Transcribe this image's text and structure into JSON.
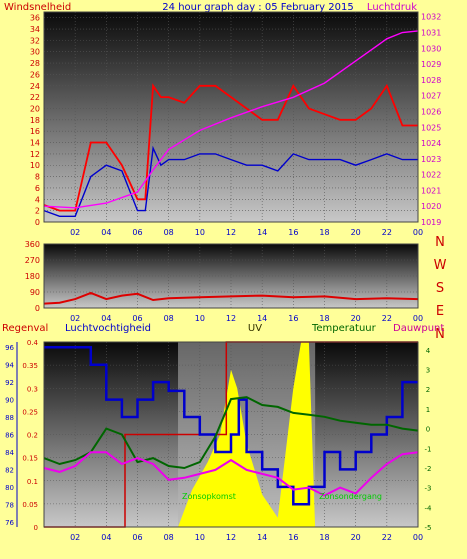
{
  "chart_data": [
    {
      "type": "line",
      "title": "24 hour graph day : 05 February 2015",
      "left_label": "Windsnelheid",
      "right_label": "Luchtdruk",
      "x_ticks": [
        "02",
        "04",
        "06",
        "08",
        "10",
        "12",
        "14",
        "16",
        "18",
        "20",
        "22",
        "00"
      ],
      "y_left_ticks": [
        0,
        2,
        4,
        6,
        8,
        10,
        12,
        14,
        16,
        18,
        20,
        22,
        24,
        26,
        28,
        30,
        32,
        34,
        36
      ],
      "y_left_range": [
        0,
        37
      ],
      "y_right_ticks": [
        1019,
        1020,
        1021,
        1022,
        1023,
        1024,
        1025,
        1026,
        1027,
        1028,
        1029,
        1030,
        1031,
        1032
      ],
      "y_right_range": [
        1019,
        1032.3
      ],
      "grid": true,
      "series": [
        {
          "key": "gust",
          "color": "#ff0000",
          "axis": "left",
          "x": [
            0,
            1,
            2,
            3,
            4,
            5,
            6,
            6.5,
            7,
            7.5,
            8,
            9,
            10,
            11,
            12,
            13,
            14,
            15,
            16,
            17,
            18,
            19,
            20,
            21,
            22,
            23,
            24
          ],
          "y": [
            3,
            2,
            2,
            14,
            14,
            10,
            4,
            4,
            24,
            22,
            22,
            21,
            24,
            24,
            22,
            20,
            18,
            18,
            24,
            20,
            19,
            18,
            18,
            20,
            24,
            17,
            17
          ]
        },
        {
          "key": "wind",
          "color": "#0000cc",
          "axis": "left",
          "x": [
            0,
            1,
            2,
            3,
            4,
            5,
            6,
            6.5,
            7,
            7.5,
            8,
            9,
            10,
            11,
            12,
            13,
            14,
            15,
            16,
            17,
            18,
            19,
            20,
            21,
            22,
            23,
            24
          ],
          "y": [
            2,
            1,
            1,
            8,
            10,
            9,
            2,
            2,
            13,
            10,
            11,
            11,
            12,
            12,
            11,
            10,
            10,
            9,
            12,
            11,
            11,
            11,
            10,
            11,
            12,
            11,
            11
          ]
        },
        {
          "key": "pressure",
          "color": "#ff00ff",
          "axis": "right",
          "x": [
            0,
            2,
            4,
            6,
            7,
            8,
            10,
            12,
            14,
            16,
            18,
            20,
            22,
            23,
            24
          ],
          "y": [
            1020,
            1019.9,
            1020.2,
            1020.9,
            1022.3,
            1023.6,
            1024.8,
            1025.6,
            1026.3,
            1026.9,
            1027.8,
            1029.2,
            1030.6,
            1031,
            1031.1
          ]
        }
      ]
    },
    {
      "type": "line",
      "direction_labels": [
        "N",
        "W",
        "S",
        "E",
        "N"
      ],
      "x_ticks": [
        "02",
        "04",
        "06",
        "08",
        "10",
        "12",
        "14",
        "16",
        "18",
        "20",
        "22",
        "00"
      ],
      "y_ticks": [
        0,
        90,
        180,
        270,
        360
      ],
      "y_range": [
        0,
        360
      ],
      "grid": true,
      "series": [
        {
          "key": "direction",
          "color": "#dd0000",
          "x": [
            0,
            1,
            2,
            3,
            4,
            5,
            6,
            7,
            8,
            10,
            12,
            14,
            16,
            18,
            20,
            22,
            24
          ],
          "y": [
            25,
            30,
            50,
            85,
            50,
            70,
            80,
            45,
            55,
            60,
            65,
            70,
            60,
            65,
            50,
            55,
            50
          ]
        }
      ]
    },
    {
      "type": "line",
      "labels": {
        "rain": "Regenval",
        "humidity": "Luchtvochtigheid",
        "uv": "UV",
        "temperature": "Temperatuur",
        "dewpoint": "Dauwpunt"
      },
      "label_colors": {
        "rain": "#cc0000",
        "humidity": "#0000cc",
        "uv": "#333300",
        "temperature": "#006600",
        "dewpoint": "#cc0099"
      },
      "annotations": [
        {
          "text": "Zonsopkomst",
          "x": 8.6
        },
        {
          "text": "Zonsondergang",
          "x": 17.4
        }
      ],
      "x_ticks": [
        "02",
        "04",
        "06",
        "08",
        "10",
        "12",
        "14",
        "16",
        "18",
        "20",
        "22",
        "00"
      ],
      "y_rain_ticks": [
        0,
        0.05,
        0.1,
        0.15,
        0.2,
        0.25,
        0.3,
        0.35,
        0.4
      ],
      "y_rain_range": [
        0,
        0.4
      ],
      "y_humidity_ticks": [
        76,
        78,
        80,
        82,
        84,
        86,
        88,
        90,
        92,
        94,
        96
      ],
      "y_humidity_range": [
        75.4,
        96.6
      ],
      "y_temp_ticks": [
        -5,
        -4,
        -3,
        -2,
        -1,
        0,
        1,
        2,
        3,
        4
      ],
      "y_temp_range": [
        -5,
        4.4
      ],
      "sun_hours": [
        8.6,
        17.4
      ],
      "grid": true,
      "series": [
        {
          "key": "rain",
          "color": "#cc0000",
          "axis": "rain",
          "x": [
            0,
            5.2,
            5.2,
            11.7,
            11.7,
            24
          ],
          "y": [
            0,
            0,
            0.2,
            0.2,
            0.4,
            0.4
          ]
        },
        {
          "key": "humidity",
          "color": "#0000cc",
          "axis": "humidity",
          "x": [
            0,
            2,
            3,
            4,
            5,
            6,
            7,
            8,
            9,
            10,
            11,
            12,
            12.5,
            13,
            14,
            15,
            16,
            17,
            18,
            19,
            20,
            21,
            22,
            23,
            24
          ],
          "y": [
            96,
            96,
            94,
            90,
            88,
            90,
            92,
            91,
            88,
            86,
            84,
            86,
            90,
            84,
            82,
            80,
            78,
            80,
            84,
            82,
            84,
            86,
            88,
            92,
            92
          ]
        },
        {
          "key": "temperature",
          "color": "#006600",
          "axis": "temp",
          "x": [
            0,
            1,
            2,
            3,
            4,
            5,
            6,
            7,
            8,
            9,
            10,
            11,
            12,
            13,
            14,
            15,
            16,
            17,
            18,
            19,
            20,
            21,
            22,
            23,
            24
          ],
          "y": [
            -1.5,
            -1.8,
            -1.6,
            -1.2,
            0,
            -0.3,
            -1.7,
            -1.5,
            -1.9,
            -2,
            -1.7,
            -0.4,
            1.5,
            1.6,
            1.2,
            1.1,
            0.8,
            0.7,
            0.6,
            0.4,
            0.3,
            0.2,
            0.2,
            0,
            -0.1
          ]
        },
        {
          "key": "dewpoint",
          "color": "#ee00ee",
          "axis": "temp",
          "x": [
            0,
            1,
            2,
            3,
            4,
            5,
            6,
            7,
            8,
            9,
            10,
            11,
            12,
            13,
            14,
            15,
            16,
            17,
            18,
            19,
            20,
            21,
            22,
            23,
            24
          ],
          "y": [
            -2,
            -2.2,
            -1.9,
            -1.2,
            -1.2,
            -1.8,
            -1.5,
            -1.8,
            -2.6,
            -2.5,
            -2.3,
            -2.1,
            -1.6,
            -2.1,
            -2.3,
            -2.5,
            -3.1,
            -3,
            -3.4,
            -3,
            -3.3,
            -2.5,
            -1.8,
            -1.3,
            -1.2
          ]
        },
        {
          "key": "uv",
          "color": "#ffff00",
          "axis": "rain",
          "x": [
            8.6,
            9.5,
            10.5,
            11.3,
            11.7,
            12,
            12.4,
            13,
            14,
            15,
            16,
            16.5,
            17,
            17.4
          ],
          "y": [
            0,
            0.08,
            0.14,
            0.2,
            0.28,
            0.34,
            0.3,
            0.18,
            0.07,
            0.02,
            0.3,
            0.4,
            0.4,
            0
          ]
        }
      ]
    }
  ]
}
